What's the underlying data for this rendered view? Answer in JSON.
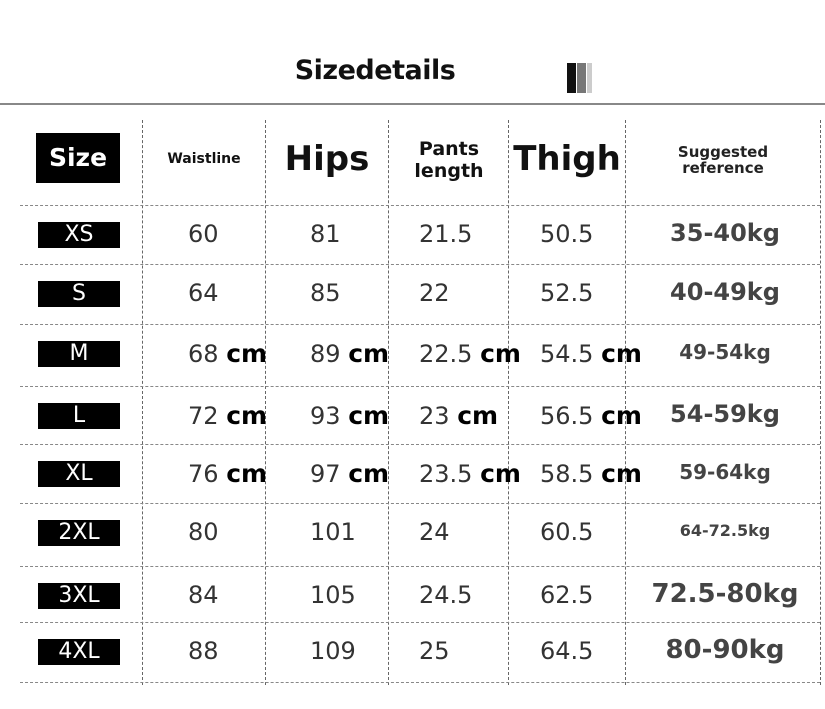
{
  "title": "Sizedetails",
  "headers": {
    "size": "Size",
    "waist": "Waistline",
    "hips": "Hips",
    "pants_line1": "Pants",
    "pants_line2": "length",
    "thigh": "Thigh",
    "ref_line1": "Suggested",
    "ref_line2": "reference"
  },
  "unit": "cm",
  "rows": [
    {
      "size": "XS",
      "waist": "60",
      "hips": "81",
      "pants": "21.5",
      "thigh": "50.5",
      "ref": "35-40kg",
      "cm": false
    },
    {
      "size": "S",
      "waist": "64",
      "hips": "85",
      "pants": "22",
      "thigh": "52.5",
      "ref": "40-49kg",
      "cm": false
    },
    {
      "size": "M",
      "waist": "68",
      "hips": "89",
      "pants": "22.5",
      "thigh": "54.5",
      "ref": "49-54kg",
      "cm": true
    },
    {
      "size": "L",
      "waist": "72",
      "hips": "93",
      "pants": "23",
      "thigh": "56.5",
      "ref": "54-59kg",
      "cm": true
    },
    {
      "size": "XL",
      "waist": "76",
      "hips": "97",
      "pants": "23.5",
      "thigh": "58.5",
      "ref": "59-64kg",
      "cm": true
    },
    {
      "size": "2XL",
      "waist": "80",
      "hips": "101",
      "pants": "24",
      "thigh": "60.5",
      "ref": "64-72.5kg",
      "cm": false
    },
    {
      "size": "3XL",
      "waist": "84",
      "hips": "105",
      "pants": "24.5",
      "thigh": "62.5",
      "ref": "72.5-80kg",
      "cm": false
    },
    {
      "size": "4XL",
      "waist": "88",
      "hips": "109",
      "pants": "25",
      "thigh": "64.5",
      "ref": "80-90kg",
      "cm": false
    }
  ]
}
